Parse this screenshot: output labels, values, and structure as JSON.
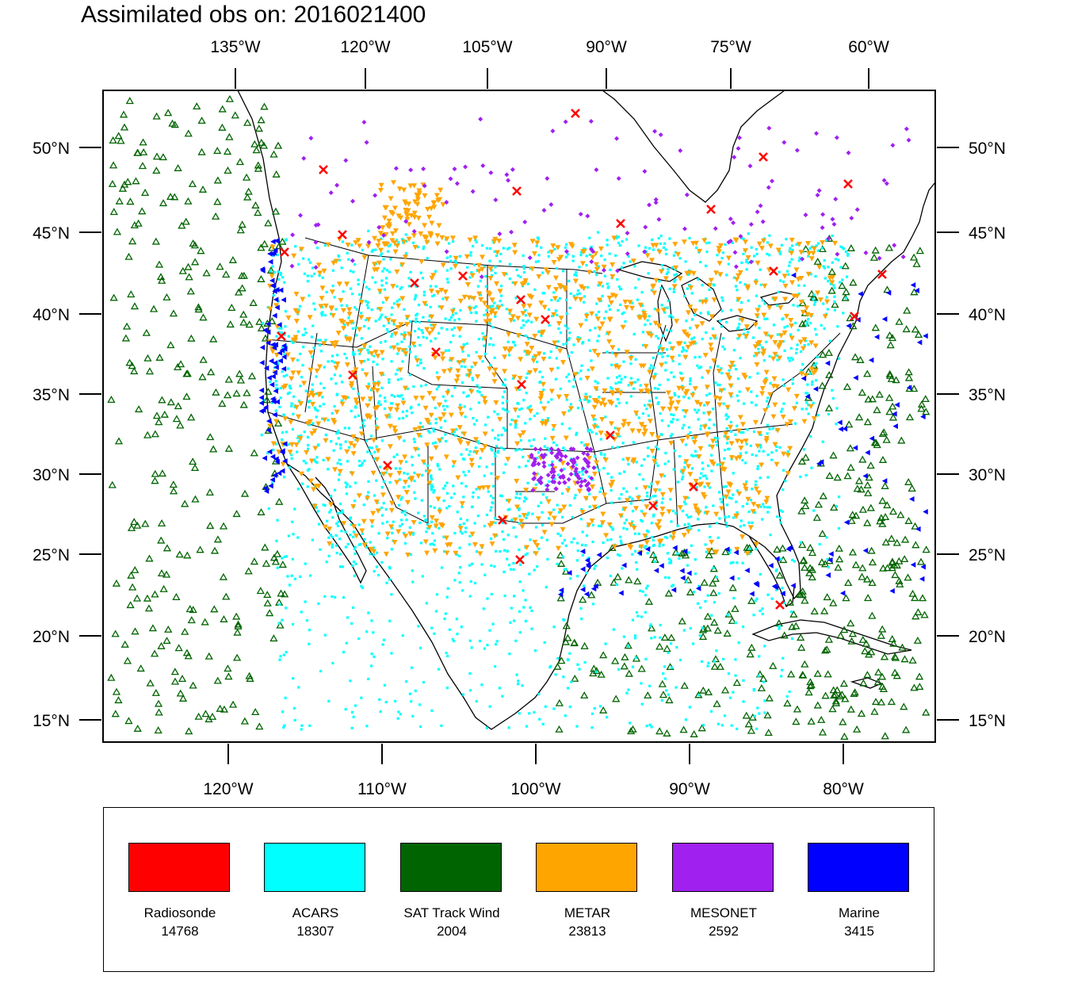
{
  "title": "Assimilated obs on: 2016021400",
  "map": {
    "top_axis_labels": [
      "135°W",
      "120°W",
      "105°W",
      "90°W",
      "75°W",
      "60°W"
    ],
    "bottom_axis_labels": [
      "120°W",
      "110°W",
      "100°W",
      "90°W",
      "80°W"
    ],
    "lat_labels": [
      "50°N",
      "45°N",
      "40°N",
      "35°N",
      "30°N",
      "25°N",
      "20°N",
      "15°N"
    ],
    "region": "Continental United States, Gulf of Mexico and surrounding ocean"
  },
  "legend": [
    {
      "name": "Radiosonde",
      "count": "14768",
      "color": "#ff0000",
      "marker": "x-cross"
    },
    {
      "name": "ACARS",
      "count": "18307",
      "color": "#00ffff",
      "marker": "square-dot"
    },
    {
      "name": "SAT Track Wind",
      "count": "2004",
      "color": "#006400",
      "marker": "triangle-up-outline"
    },
    {
      "name": "METAR",
      "count": "23813",
      "color": "#ffa500",
      "marker": "triangle-down-filled"
    },
    {
      "name": "MESONET",
      "count": "2592",
      "color": "#a020f0",
      "marker": "diamond"
    },
    {
      "name": "Marine",
      "count": "3415",
      "color": "#0000ff",
      "marker": "triangle-left-filled"
    }
  ]
}
